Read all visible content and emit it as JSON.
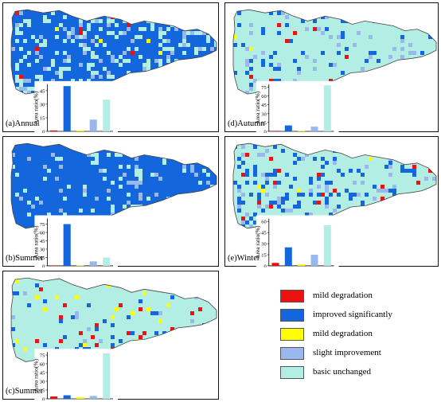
{
  "colors": {
    "red": "#ee1111",
    "blue": "#1466dd",
    "yellow": "#ffff00",
    "lightblue": "#9ab8ee",
    "cyan": "#b3eee4",
    "region_outline": "#444444"
  },
  "legend": {
    "items": [
      {
        "label": "mild degradation",
        "color": "#ee1111"
      },
      {
        "label": "improved significantly",
        "color": "#1466dd"
      },
      {
        "label": "mild degradation",
        "color": "#ffff00"
      },
      {
        "label": "slight improvement",
        "color": "#9ab8ee"
      },
      {
        "label": "basic unchanged",
        "color": "#b3eee4"
      }
    ]
  },
  "chart_data": [
    {
      "type": "bar",
      "label": "(a)Annual",
      "map_mix": {
        "blue": 0.5,
        "cyan": 0.34,
        "lightblue": 0.13,
        "red": 0.015,
        "yellow": 0.015
      },
      "ylabel": "Area ratio(%)",
      "yticks": [
        "0",
        "15",
        "30",
        "45"
      ],
      "ylim": [
        0,
        52
      ],
      "colors": [
        "#ee1111",
        "#1466dd",
        "#ffff00",
        "#9ab8ee",
        "#b3eee4"
      ],
      "values": [
        1,
        50,
        1,
        13,
        35
      ]
    },
    {
      "type": "bar",
      "label": "(b)Summer",
      "map_mix": {
        "blue": 0.74,
        "cyan": 0.17,
        "lightblue": 0.09,
        "red": 0.0,
        "yellow": 0.0
      },
      "ylabel": "Area ratio(%)",
      "yticks": [
        "0",
        "15",
        "30",
        "45",
        "60",
        "75"
      ],
      "ylim": [
        0,
        85
      ],
      "colors": [
        "#ee1111",
        "#1466dd",
        "#ffff00",
        "#9ab8ee",
        "#b3eee4"
      ],
      "values": [
        0,
        75,
        0,
        8,
        15
      ]
    },
    {
      "type": "bar",
      "label": "(c)Summer",
      "map_mix": {
        "cyan": 0.78,
        "blue": 0.08,
        "lightblue": 0.05,
        "red": 0.05,
        "yellow": 0.04
      },
      "ylabel": "Area ratio(%)",
      "yticks": [
        "0",
        "15",
        "30",
        "45",
        "60",
        "75"
      ],
      "ylim": [
        0,
        80
      ],
      "colors": [
        "#ee1111",
        "#1466dd",
        "#ffff00",
        "#9ab8ee",
        "#b3eee4"
      ],
      "values": [
        4,
        6,
        3,
        5,
        78
      ]
    },
    {
      "type": "bar",
      "label": "(d)Autumn",
      "map_mix": {
        "cyan": 0.75,
        "blue": 0.13,
        "lightblue": 0.09,
        "red": 0.015,
        "yellow": 0.015
      },
      "ylabel": "Area ratio(%)",
      "yticks": [
        "0",
        "15",
        "30",
        "45",
        "60",
        "75"
      ],
      "ylim": [
        0,
        80
      ],
      "colors": [
        "#ee1111",
        "#1466dd",
        "#ffff00",
        "#9ab8ee",
        "#b3eee4"
      ],
      "values": [
        0,
        10,
        0,
        8,
        78
      ]
    },
    {
      "type": "bar",
      "label": "(e)Winter",
      "map_mix": {
        "cyan": 0.58,
        "blue": 0.25,
        "lightblue": 0.12,
        "red": 0.04,
        "yellow": 0.01
      },
      "ylabel": "Area ratio(%)",
      "yticks": [
        "0",
        "15",
        "30",
        "45",
        "60"
      ],
      "ylim": [
        0,
        64
      ],
      "colors": [
        "#ee1111",
        "#1466dd",
        "#ffff00",
        "#9ab8ee",
        "#b3eee4"
      ],
      "values": [
        4,
        25,
        2,
        15,
        55
      ]
    }
  ]
}
